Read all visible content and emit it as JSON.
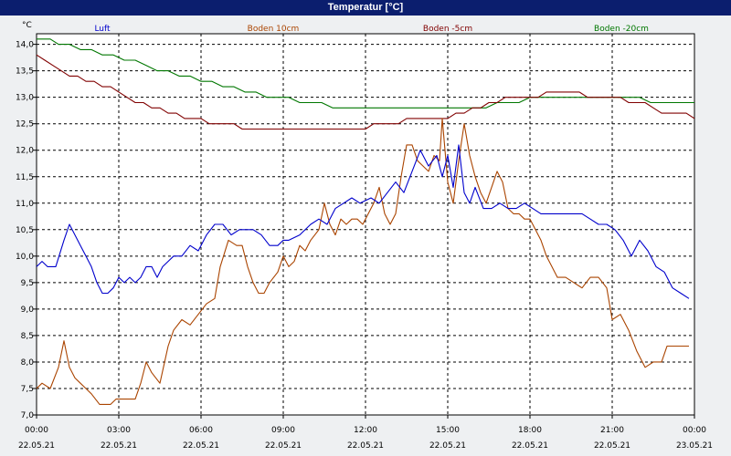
{
  "window": {
    "title": "Temperatur [°C]"
  },
  "colors": {
    "title_bg": "#0b1e6e",
    "plot_bg": "#ffffff",
    "page_bg": "#eef0f2"
  },
  "chart_data": {
    "type": "line",
    "title": "Temperatur [°C]",
    "ylabel": "°C",
    "xlabel": "",
    "ylim": [
      7.0,
      14.2
    ],
    "xlim": [
      0,
      24
    ],
    "grid": true,
    "legend_position": "top",
    "y_ticks": [
      "7,0",
      "7,5",
      "8,0",
      "8,5",
      "9,0",
      "9,5",
      "10,0",
      "10,5",
      "11,0",
      "11,5",
      "12,0",
      "12,5",
      "13,0",
      "13,5",
      "14,0"
    ],
    "x_ticks": [
      {
        "time": "00:00",
        "date": "22.05.21"
      },
      {
        "time": "03:00",
        "date": "22.05.21"
      },
      {
        "time": "06:00",
        "date": "22.05.21"
      },
      {
        "time": "09:00",
        "date": "22.05.21"
      },
      {
        "time": "12:00",
        "date": "22.05.21"
      },
      {
        "time": "15:00",
        "date": "22.05.21"
      },
      {
        "time": "18:00",
        "date": "22.05.21"
      },
      {
        "time": "21:00",
        "date": "22.05.21"
      },
      {
        "time": "00:00",
        "date": "23.05.21"
      }
    ],
    "series": [
      {
        "name": "Luft",
        "color": "#0000cc",
        "x": [
          0,
          0.2,
          0.4,
          0.7,
          1.0,
          1.2,
          1.4,
          1.6,
          1.8,
          2.0,
          2.2,
          2.4,
          2.6,
          2.8,
          3.0,
          3.2,
          3.4,
          3.6,
          3.8,
          4.0,
          4.2,
          4.4,
          4.6,
          4.8,
          5.0,
          5.3,
          5.6,
          5.9,
          6.2,
          6.5,
          6.8,
          7.1,
          7.4,
          7.7,
          7.9,
          8.2,
          8.5,
          8.8,
          9.0,
          9.2,
          9.6,
          10.0,
          10.3,
          10.6,
          10.9,
          11.2,
          11.5,
          11.8,
          12.2,
          12.5,
          12.8,
          13.1,
          13.4,
          13.7,
          14.0,
          14.3,
          14.6,
          14.8,
          15.0,
          15.2,
          15.4,
          15.6,
          15.8,
          16.0,
          16.3,
          16.6,
          16.9,
          17.2,
          17.5,
          17.8,
          18.1,
          18.4,
          18.7,
          19.0,
          19.3,
          19.6,
          19.9,
          20.2,
          20.5,
          20.8,
          21.1,
          21.4,
          21.7,
          22.0,
          22.3,
          22.6,
          22.9,
          23.2,
          23.5,
          23.8
        ],
        "y": [
          9.8,
          9.9,
          9.8,
          9.8,
          10.3,
          10.6,
          10.4,
          10.2,
          10.0,
          9.8,
          9.5,
          9.3,
          9.3,
          9.4,
          9.6,
          9.5,
          9.6,
          9.5,
          9.6,
          9.8,
          9.8,
          9.6,
          9.8,
          9.9,
          10.0,
          10.0,
          10.2,
          10.1,
          10.4,
          10.6,
          10.6,
          10.4,
          10.5,
          10.5,
          10.5,
          10.4,
          10.2,
          10.2,
          10.3,
          10.3,
          10.4,
          10.6,
          10.7,
          10.6,
          10.9,
          11.0,
          11.1,
          11.0,
          11.1,
          11.0,
          11.2,
          11.4,
          11.2,
          11.6,
          12.0,
          11.7,
          11.9,
          11.5,
          11.9,
          11.3,
          12.1,
          11.2,
          11.0,
          11.3,
          10.9,
          10.9,
          11.0,
          10.9,
          10.9,
          11.0,
          10.9,
          10.8,
          10.8,
          10.8,
          10.8,
          10.8,
          10.8,
          10.7,
          10.6,
          10.6,
          10.5,
          10.3,
          10.0,
          10.3,
          10.1,
          9.8,
          9.7,
          9.4,
          9.3,
          9.2
        ]
      },
      {
        "name": "Boden 10cm",
        "color": "#aa4400",
        "x": [
          0,
          0.2,
          0.5,
          0.8,
          1.0,
          1.2,
          1.4,
          1.6,
          1.8,
          2.0,
          2.3,
          2.5,
          2.7,
          2.9,
          3.1,
          3.4,
          3.6,
          3.8,
          4.0,
          4.2,
          4.5,
          4.8,
          5.0,
          5.3,
          5.6,
          5.9,
          6.2,
          6.5,
          6.7,
          7.0,
          7.3,
          7.5,
          7.7,
          7.9,
          8.1,
          8.3,
          8.5,
          8.8,
          9.0,
          9.2,
          9.4,
          9.6,
          9.8,
          10.0,
          10.3,
          10.5,
          10.7,
          10.9,
          11.1,
          11.3,
          11.5,
          11.7,
          11.9,
          12.1,
          12.3,
          12.5,
          12.7,
          12.9,
          13.1,
          13.3,
          13.5,
          13.7,
          13.9,
          14.1,
          14.3,
          14.5,
          14.7,
          14.8,
          15.0,
          15.2,
          15.4,
          15.6,
          15.8,
          16.0,
          16.2,
          16.4,
          16.6,
          16.8,
          17.0,
          17.2,
          17.4,
          17.6,
          17.8,
          18.0,
          18.2,
          18.4,
          18.6,
          18.8,
          19.0,
          19.3,
          19.6,
          19.9,
          20.2,
          20.5,
          20.8,
          21.0,
          21.3,
          21.6,
          21.9,
          22.2,
          22.5,
          22.8,
          23.0,
          23.2,
          23.4,
          23.6,
          23.8
        ],
        "y": [
          7.5,
          7.6,
          7.5,
          7.9,
          8.4,
          7.9,
          7.7,
          7.6,
          7.5,
          7.4,
          7.2,
          7.2,
          7.2,
          7.3,
          7.3,
          7.3,
          7.3,
          7.6,
          8.0,
          7.8,
          7.6,
          8.3,
          8.6,
          8.8,
          8.7,
          8.9,
          9.1,
          9.2,
          9.8,
          10.3,
          10.2,
          10.2,
          9.8,
          9.5,
          9.3,
          9.3,
          9.5,
          9.7,
          10.0,
          9.8,
          9.9,
          10.2,
          10.1,
          10.3,
          10.5,
          11.0,
          10.6,
          10.4,
          10.7,
          10.6,
          10.7,
          10.7,
          10.6,
          10.8,
          11.0,
          11.3,
          10.8,
          10.6,
          10.8,
          11.5,
          12.1,
          12.1,
          11.8,
          11.7,
          11.6,
          11.9,
          11.8,
          12.6,
          11.4,
          11.0,
          11.8,
          12.5,
          11.9,
          11.5,
          11.2,
          11.0,
          11.3,
          11.6,
          11.4,
          10.9,
          10.8,
          10.8,
          10.7,
          10.7,
          10.5,
          10.3,
          10.0,
          9.8,
          9.6,
          9.6,
          9.5,
          9.4,
          9.6,
          9.6,
          9.4,
          8.8,
          8.9,
          8.6,
          8.2,
          7.9,
          8.0,
          8.0,
          8.3,
          8.3,
          8.3,
          8.3,
          8.3
        ]
      },
      {
        "name": "Boden -5cm",
        "color": "#800000",
        "x": [
          0,
          0.3,
          0.6,
          0.9,
          1.2,
          1.5,
          1.8,
          2.1,
          2.4,
          2.7,
          3.0,
          3.3,
          3.6,
          3.9,
          4.2,
          4.5,
          4.8,
          5.1,
          5.4,
          5.7,
          6.0,
          6.3,
          6.6,
          6.9,
          7.2,
          7.5,
          7.8,
          8.1,
          8.4,
          8.7,
          9.0,
          9.3,
          9.6,
          9.9,
          10.2,
          10.5,
          10.8,
          11.1,
          11.4,
          11.7,
          12.0,
          12.3,
          12.6,
          12.9,
          13.2,
          13.5,
          13.8,
          14.1,
          14.4,
          14.7,
          15.0,
          15.3,
          15.6,
          15.9,
          16.2,
          16.5,
          16.8,
          17.1,
          17.4,
          17.7,
          18.0,
          18.3,
          18.6,
          18.9,
          19.2,
          19.5,
          19.8,
          20.1,
          20.4,
          20.7,
          21.0,
          21.3,
          21.6,
          21.9,
          22.2,
          22.5,
          22.8,
          23.1,
          23.4,
          23.7,
          24.0
        ],
        "y": [
          13.8,
          13.7,
          13.6,
          13.5,
          13.4,
          13.4,
          13.3,
          13.3,
          13.2,
          13.2,
          13.1,
          13.0,
          12.9,
          12.9,
          12.8,
          12.8,
          12.7,
          12.7,
          12.6,
          12.6,
          12.6,
          12.5,
          12.5,
          12.5,
          12.5,
          12.4,
          12.4,
          12.4,
          12.4,
          12.4,
          12.4,
          12.4,
          12.4,
          12.4,
          12.4,
          12.4,
          12.4,
          12.4,
          12.4,
          12.4,
          12.4,
          12.5,
          12.5,
          12.5,
          12.5,
          12.6,
          12.6,
          12.6,
          12.6,
          12.6,
          12.6,
          12.7,
          12.7,
          12.8,
          12.8,
          12.9,
          12.9,
          13.0,
          13.0,
          13.0,
          13.0,
          13.0,
          13.1,
          13.1,
          13.1,
          13.1,
          13.1,
          13.0,
          13.0,
          13.0,
          13.0,
          13.0,
          12.9,
          12.9,
          12.9,
          12.8,
          12.7,
          12.7,
          12.7,
          12.7,
          12.6
        ]
      },
      {
        "name": "Boden -20cm",
        "color": "#007700",
        "x": [
          0,
          0.5,
          0.8,
          1.2,
          1.6,
          2.0,
          2.4,
          2.8,
          3.2,
          3.6,
          4.0,
          4.4,
          4.8,
          5.2,
          5.6,
          6.0,
          6.4,
          6.8,
          7.2,
          7.6,
          8.0,
          8.4,
          8.8,
          9.2,
          9.6,
          10.0,
          10.4,
          10.8,
          11.2,
          11.6,
          12.0,
          12.4,
          12.8,
          13.2,
          13.6,
          14.0,
          14.4,
          14.8,
          15.2,
          15.6,
          16.0,
          16.4,
          16.8,
          17.2,
          17.6,
          18.0,
          18.4,
          18.8,
          19.2,
          19.6,
          20.0,
          20.4,
          20.8,
          21.2,
          21.6,
          22.0,
          22.4,
          22.8,
          23.2,
          23.6,
          24.0
        ],
        "y": [
          14.1,
          14.1,
          14.0,
          14.0,
          13.9,
          13.9,
          13.8,
          13.8,
          13.7,
          13.7,
          13.6,
          13.5,
          13.5,
          13.4,
          13.4,
          13.3,
          13.3,
          13.2,
          13.2,
          13.1,
          13.1,
          13.0,
          13.0,
          13.0,
          12.9,
          12.9,
          12.9,
          12.8,
          12.8,
          12.8,
          12.8,
          12.8,
          12.8,
          12.8,
          12.8,
          12.8,
          12.8,
          12.8,
          12.8,
          12.8,
          12.8,
          12.8,
          12.9,
          12.9,
          12.9,
          13.0,
          13.0,
          13.0,
          13.0,
          13.0,
          13.0,
          13.0,
          13.0,
          13.0,
          13.0,
          13.0,
          12.9,
          12.9,
          12.9,
          12.9,
          12.9
        ]
      }
    ]
  }
}
